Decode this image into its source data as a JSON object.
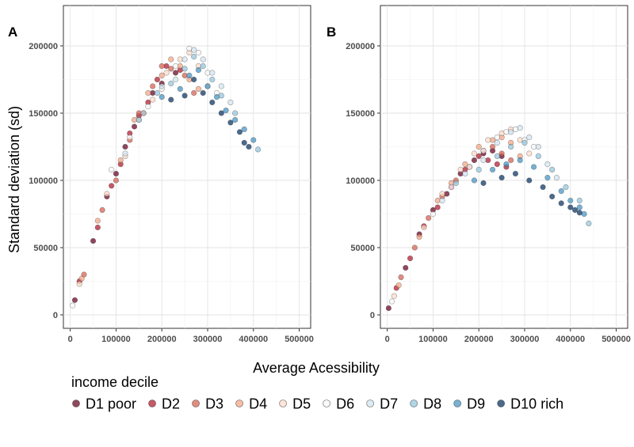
{
  "figure": {
    "xlabel": "Average Acessibility",
    "ylabel": "Standard deviation (sd)",
    "legend_title": "income decile",
    "legend_position": "bottom"
  },
  "chart_data": [
    {
      "type": "scatter",
      "panel": "A",
      "xlabel": "Average Acessibility",
      "ylabel": "Standard deviation (sd)",
      "xlim": [
        -15000,
        525000
      ],
      "ylim": [
        -10000,
        230000
      ],
      "x_ticks": [
        0,
        100000,
        200000,
        300000,
        400000,
        500000
      ],
      "y_ticks": [
        0,
        50000,
        100000,
        150000,
        200000
      ],
      "x_tick_labels": [
        "0",
        "100000",
        "200000",
        "300000",
        "400000",
        "500000"
      ],
      "y_tick_labels": [
        "0",
        "50000",
        "100000",
        "150000",
        "200000"
      ],
      "grid": true,
      "series": [
        {
          "name": "D1 poor",
          "color": "#67001f",
          "points": [
            [
              10000,
              11000
            ],
            [
              50000,
              55000
            ],
            [
              80000,
              88000
            ],
            [
              100000,
              105000
            ],
            [
              120000,
              125000
            ],
            [
              140000,
              140000
            ],
            [
              160000,
              150000
            ],
            [
              180000,
              165000
            ],
            [
              200000,
              172000
            ],
            [
              230000,
              180000
            ]
          ]
        },
        {
          "name": "D2",
          "color": "#b2182b",
          "points": [
            [
              20000,
              25000
            ],
            [
              60000,
              65000
            ],
            [
              90000,
              96000
            ],
            [
              110000,
              112000
            ],
            [
              130000,
              135000
            ],
            [
              150000,
              148000
            ],
            [
              170000,
              158000
            ],
            [
              190000,
              175000
            ],
            [
              210000,
              185000
            ],
            [
              240000,
              182000
            ]
          ]
        },
        {
          "name": "D3",
          "color": "#d6604d",
          "points": [
            [
              30000,
              30000
            ],
            [
              70000,
              78000
            ],
            [
              100000,
              100000
            ],
            [
              130000,
              130000
            ],
            [
              150000,
              150000
            ],
            [
              180000,
              170000
            ],
            [
              200000,
              185000
            ],
            [
              220000,
              183000
            ],
            [
              250000,
              178000
            ],
            [
              270000,
              165000
            ]
          ]
        },
        {
          "name": "D4",
          "color": "#f4a582",
          "points": [
            [
              25000,
              27000
            ],
            [
              60000,
              70000
            ],
            [
              110000,
              115000
            ],
            [
              140000,
              145000
            ],
            [
              170000,
              165000
            ],
            [
              200000,
              178000
            ],
            [
              220000,
              190000
            ],
            [
              240000,
              185000
            ],
            [
              260000,
              175000
            ],
            [
              280000,
              168000
            ]
          ]
        },
        {
          "name": "D5",
          "color": "#fddbc7",
          "points": [
            [
              20000,
              23000
            ],
            [
              80000,
              90000
            ],
            [
              120000,
              118000
            ],
            [
              150000,
              145000
            ],
            [
              180000,
              160000
            ],
            [
              210000,
              180000
            ],
            [
              240000,
              190000
            ],
            [
              260000,
              195000
            ],
            [
              280000,
              185000
            ],
            [
              300000,
              170000
            ]
          ]
        },
        {
          "name": "D6",
          "color": "#f7f7f7",
          "points": [
            [
              5000,
              7000
            ],
            [
              90000,
              108000
            ],
            [
              130000,
              132000
            ],
            [
              170000,
              155000
            ],
            [
              200000,
              168000
            ],
            [
              230000,
              185000
            ],
            [
              260000,
              198000
            ],
            [
              280000,
              195000
            ],
            [
              300000,
              180000
            ],
            [
              320000,
              165000
            ]
          ]
        },
        {
          "name": "D7",
          "color": "#d1e5f0",
          "points": [
            [
              120000,
              120000
            ],
            [
              160000,
              150000
            ],
            [
              200000,
              170000
            ],
            [
              230000,
              175000
            ],
            [
              250000,
              190000
            ],
            [
              270000,
              197000
            ],
            [
              290000,
              190000
            ],
            [
              310000,
              180000
            ],
            [
              330000,
              170000
            ],
            [
              350000,
              158000
            ]
          ]
        },
        {
          "name": "D8",
          "color": "#92c5de",
          "points": [
            [
              150000,
              145000
            ],
            [
              190000,
              165000
            ],
            [
              220000,
              172000
            ],
            [
              250000,
              183000
            ],
            [
              270000,
              192000
            ],
            [
              290000,
              185000
            ],
            [
              310000,
              175000
            ],
            [
              330000,
              163000
            ],
            [
              360000,
              150000
            ],
            [
              410000,
              123000
            ]
          ]
        },
        {
          "name": "D9",
          "color": "#4393c3",
          "points": [
            [
              200000,
              162000
            ],
            [
              240000,
              168000
            ],
            [
              260000,
              178000
            ],
            [
              280000,
              182000
            ],
            [
              300000,
              170000
            ],
            [
              320000,
              162000
            ],
            [
              340000,
              152000
            ],
            [
              360000,
              145000
            ],
            [
              380000,
              138000
            ],
            [
              400000,
              130000
            ]
          ]
        },
        {
          "name": "D10 rich",
          "color": "#053061",
          "points": [
            [
              220000,
              160000
            ],
            [
              250000,
              163000
            ],
            [
              270000,
              175000
            ],
            [
              290000,
              165000
            ],
            [
              310000,
              158000
            ],
            [
              330000,
              150000
            ],
            [
              350000,
              143000
            ],
            [
              370000,
              136000
            ],
            [
              380000,
              128000
            ],
            [
              390000,
              125000
            ]
          ]
        }
      ]
    },
    {
      "type": "scatter",
      "panel": "B",
      "xlabel": "Average Acessibility",
      "ylabel": "",
      "xlim": [
        -15000,
        525000
      ],
      "ylim": [
        -10000,
        230000
      ],
      "x_ticks": [
        0,
        100000,
        200000,
        300000,
        400000,
        500000
      ],
      "y_ticks": [
        0,
        50000,
        100000,
        150000,
        200000
      ],
      "x_tick_labels": [
        "0",
        "100000",
        "200000",
        "300000",
        "400000",
        "500000"
      ],
      "y_tick_labels": [
        "0",
        "50000",
        "100000",
        "150000",
        "200000"
      ],
      "grid": true,
      "series": [
        {
          "name": "D1 poor",
          "color": "#67001f",
          "points": [
            [
              3000,
              5000
            ],
            [
              40000,
              35000
            ],
            [
              70000,
              60000
            ],
            [
              100000,
              78000
            ],
            [
              130000,
              90000
            ],
            [
              160000,
              105000
            ],
            [
              190000,
              115000
            ],
            [
              210000,
              120000
            ],
            [
              230000,
              122000
            ],
            [
              250000,
              118000
            ]
          ]
        },
        {
          "name": "D2",
          "color": "#b2182b",
          "points": [
            [
              20000,
              20000
            ],
            [
              50000,
              42000
            ],
            [
              80000,
              66000
            ],
            [
              110000,
              80000
            ],
            [
              140000,
              95000
            ],
            [
              170000,
              108000
            ],
            [
              200000,
              118000
            ],
            [
              220000,
              115000
            ],
            [
              240000,
              112000
            ],
            [
              260000,
              110000
            ]
          ]
        },
        {
          "name": "D3",
          "color": "#d6604d",
          "points": [
            [
              30000,
              28000
            ],
            [
              60000,
              50000
            ],
            [
              90000,
              72000
            ],
            [
              120000,
              88000
            ],
            [
              150000,
              100000
            ],
            [
              180000,
              110000
            ],
            [
              210000,
              122000
            ],
            [
              230000,
              125000
            ],
            [
              250000,
              120000
            ],
            [
              270000,
              115000
            ]
          ]
        },
        {
          "name": "D4",
          "color": "#f4a582",
          "points": [
            [
              25000,
              22000
            ],
            [
              70000,
              58000
            ],
            [
              110000,
              85000
            ],
            [
              140000,
              98000
            ],
            [
              170000,
              112000
            ],
            [
              200000,
              125000
            ],
            [
              230000,
              130000
            ],
            [
              250000,
              132000
            ],
            [
              270000,
              128000
            ],
            [
              290000,
              118000
            ]
          ]
        },
        {
          "name": "D5",
          "color": "#fddbc7",
          "points": [
            [
              15000,
              14000
            ],
            [
              80000,
              65000
            ],
            [
              120000,
              90000
            ],
            [
              160000,
              108000
            ],
            [
              190000,
              120000
            ],
            [
              220000,
              130000
            ],
            [
              250000,
              135000
            ],
            [
              270000,
              138000
            ],
            [
              290000,
              130000
            ],
            [
              310000,
              120000
            ]
          ]
        },
        {
          "name": "D6",
          "color": "#f7f7f7",
          "points": [
            [
              10000,
              10000
            ],
            [
              100000,
              75000
            ],
            [
              140000,
              95000
            ],
            [
              180000,
              110000
            ],
            [
              210000,
              122000
            ],
            [
              240000,
              132000
            ],
            [
              260000,
              136000
            ],
            [
              280000,
              138000
            ],
            [
              300000,
              130000
            ],
            [
              320000,
              125000
            ]
          ]
        },
        {
          "name": "D7",
          "color": "#d1e5f0",
          "points": [
            [
              120000,
              85000
            ],
            [
              170000,
              105000
            ],
            [
              210000,
              115000
            ],
            [
              240000,
              128000
            ],
            [
              270000,
              136000
            ],
            [
              290000,
              139000
            ],
            [
              310000,
              132000
            ],
            [
              330000,
              125000
            ],
            [
              350000,
              112000
            ],
            [
              370000,
              102000
            ]
          ]
        },
        {
          "name": "D8",
          "color": "#92c5de",
          "points": [
            [
              150000,
              98000
            ],
            [
              200000,
              108000
            ],
            [
              240000,
              118000
            ],
            [
              270000,
              125000
            ],
            [
              300000,
              128000
            ],
            [
              330000,
              118000
            ],
            [
              360000,
              108000
            ],
            [
              390000,
              95000
            ],
            [
              420000,
              85000
            ],
            [
              440000,
              68000
            ]
          ]
        },
        {
          "name": "D9",
          "color": "#4393c3",
          "points": [
            [
              190000,
              100000
            ],
            [
              230000,
              108000
            ],
            [
              260000,
              112000
            ],
            [
              290000,
              115000
            ],
            [
              320000,
              110000
            ],
            [
              350000,
              102000
            ],
            [
              380000,
              92000
            ],
            [
              400000,
              85000
            ],
            [
              420000,
              80000
            ],
            [
              430000,
              75000
            ]
          ]
        },
        {
          "name": "D10 rich",
          "color": "#053061",
          "points": [
            [
              210000,
              98000
            ],
            [
              250000,
              102000
            ],
            [
              280000,
              105000
            ],
            [
              310000,
              100000
            ],
            [
              340000,
              95000
            ],
            [
              360000,
              88000
            ],
            [
              380000,
              83000
            ],
            [
              400000,
              80000
            ],
            [
              410000,
              78000
            ],
            [
              420000,
              76000
            ]
          ]
        }
      ]
    }
  ]
}
